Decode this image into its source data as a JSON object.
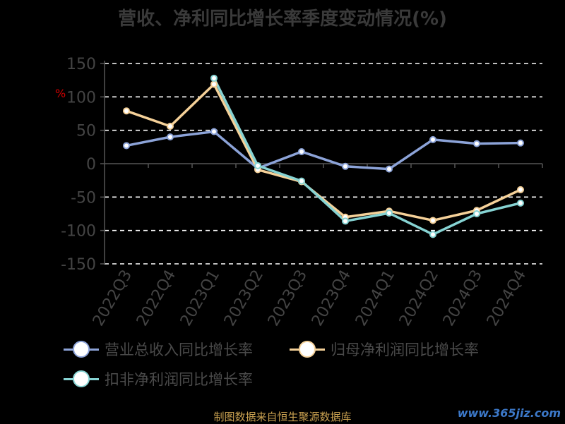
{
  "chart_data": {
    "type": "line",
    "title": "营收、净利同比增长率季度变动情况(%)",
    "ylabel": "%",
    "categories": [
      "2022Q3",
      "2022Q4",
      "2023Q1",
      "2023Q2",
      "2023Q3",
      "2023Q4",
      "2024Q1",
      "2024Q2",
      "2024Q3",
      "2024Q4"
    ],
    "ylim": [
      -150,
      150
    ],
    "yticks": [
      "150",
      "100",
      "50",
      "0",
      "-50",
      "-100",
      "-150"
    ],
    "grid": true,
    "legend_position": "bottom",
    "series": [
      {
        "name": "营业总收入同比增长率",
        "color": "#8ca3d8",
        "values": [
          27,
          40,
          48,
          -7,
          18,
          -4,
          -8,
          36,
          30,
          31
        ]
      },
      {
        "name": "归母净利润同比增长率",
        "color": "#f5d199",
        "values": [
          79,
          56,
          119,
          -9,
          -27,
          -80,
          -71,
          -85,
          -70,
          -39
        ]
      },
      {
        "name": "扣非净利润同比增长率",
        "color": "#86d3d3",
        "values": [
          null,
          null,
          128,
          -3,
          -26,
          -86,
          -74,
          -106,
          -75,
          -59
        ]
      }
    ]
  },
  "footer": {
    "source": "制图数据来自恒生聚源数据库",
    "watermark": "www.365jiz.com"
  }
}
